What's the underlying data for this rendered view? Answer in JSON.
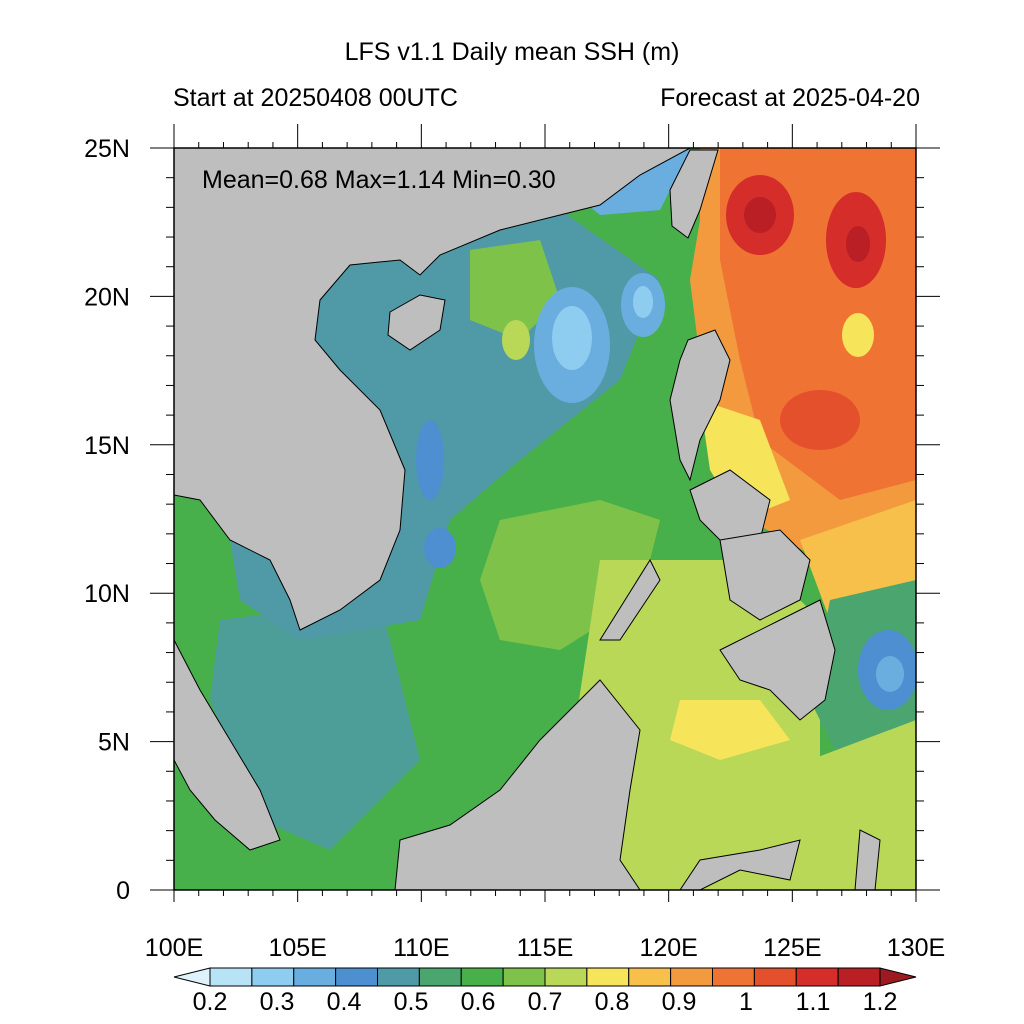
{
  "title": "LFS v1.1 Daily mean SSH (m)",
  "start_label": "Start at 20250408 00UTC",
  "forecast_label": "Forecast at 2025-04-20",
  "stats": {
    "text": "Mean=0.68  Max=1.14  Min=0.30",
    "mean": 0.68,
    "max": 1.14,
    "min": 0.3
  },
  "map": {
    "lon_range": [
      100,
      130
    ],
    "lat_range": [
      0,
      25
    ],
    "lon_ticks": [
      "100E",
      "105E",
      "110E",
      "115E",
      "120E",
      "125E",
      "130E"
    ],
    "lat_ticks": [
      "0",
      "5N",
      "10N",
      "15N",
      "20N",
      "25N"
    ],
    "land_color": "#bebebe"
  },
  "colorbar": {
    "labels": [
      "0.2",
      "0.3",
      "0.4",
      "0.5",
      "0.6",
      "0.7",
      "0.8",
      "0.9",
      "1",
      "1.1",
      "1.2"
    ],
    "colors": [
      "#dff2fb",
      "#b8e2f5",
      "#8fcdf0",
      "#6aaee0",
      "#4d8fd0",
      "#4f9aa6",
      "#4aa56e",
      "#48b04a",
      "#7fc24a",
      "#bad858",
      "#f6e45a",
      "#f7c04a",
      "#f49a3e",
      "#ef7333",
      "#e4502b",
      "#d42d2a",
      "#b91f24",
      "#9c1a20"
    ]
  }
}
